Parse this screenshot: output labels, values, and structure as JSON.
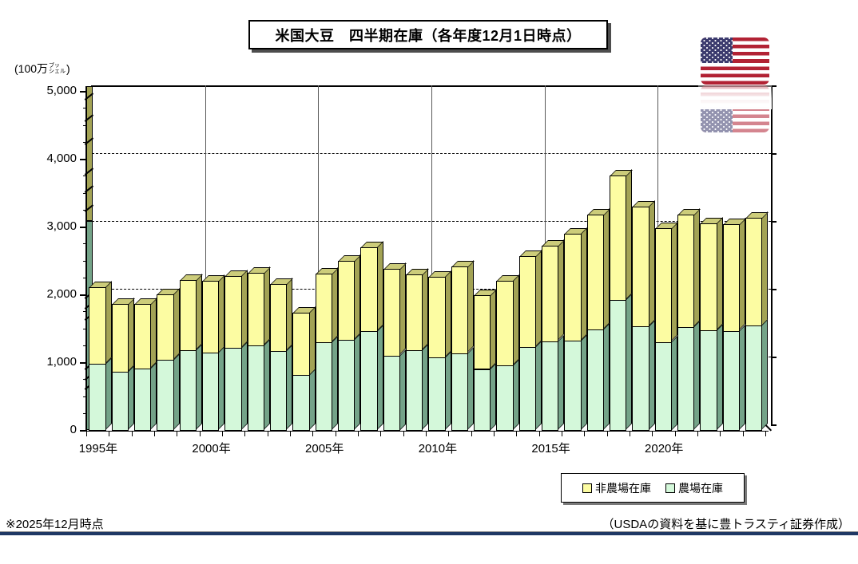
{
  "title": "米国大豆　四半期在庫（各年度12月1日時点）",
  "y_axis": {
    "unit_prefix": "(100万",
    "unit_stack_top": "ブッ",
    "unit_stack_bottom": "シェル",
    "unit_suffix": ")",
    "tick_labels": [
      "0",
      "1,000",
      "2,000",
      "3,000",
      "4,000",
      "5,000"
    ]
  },
  "x_axis": {
    "labels": [
      "1995年",
      "2000年",
      "2005年",
      "2010年",
      "2015年",
      "2020年"
    ],
    "label_years": [
      1995,
      2000,
      2005,
      2010,
      2015,
      2020
    ]
  },
  "legend": {
    "items": [
      {
        "label": "非農場在庫",
        "color": "#FCFCA2"
      },
      {
        "label": "農場在庫",
        "color": "#D4F8DA"
      }
    ]
  },
  "footer": {
    "left_note": "※2025年12月時点",
    "right_note": "（USDAの資料を基に豊トラスティ証券作成）"
  },
  "flag": {
    "name": "us-flag",
    "red": "#B22234",
    "blue": "#3C3B6E"
  },
  "chart_data": {
    "type": "bar",
    "stacked": true,
    "pseudo_3d": true,
    "title": "米国大豆　四半期在庫（各年度12月1日時点）",
    "unit": "100万ブッシェル",
    "ylim": [
      0,
      5000
    ],
    "y_gridlines": [
      1000,
      2000,
      3000,
      4000
    ],
    "grid_style": "dashed-horizontal, solid-vertical-every-5-years",
    "legend_position": "bottom-right-box",
    "categories": [
      1995,
      1996,
      1997,
      1998,
      1999,
      2000,
      2001,
      2002,
      2003,
      2004,
      2005,
      2006,
      2007,
      2008,
      2009,
      2010,
      2011,
      2012,
      2013,
      2014,
      2015,
      2016,
      2017,
      2018,
      2019,
      2020,
      2021,
      2022,
      2023,
      2024
    ],
    "series": [
      {
        "name": "農場在庫",
        "color": "#D4F8DA",
        "side_color": "#74A388",
        "top_color": "#A3CFAF",
        "values": [
          980,
          860,
          910,
          1030,
          1175,
          1140,
          1210,
          1245,
          1165,
          810,
          1295,
          1335,
          1460,
          1100,
          1175,
          1075,
          1135,
          900,
          955,
          1225,
          1310,
          1320,
          1480,
          1920,
          1525,
          1300,
          1520,
          1475,
          1460,
          1540
        ]
      },
      {
        "name": "非農場在庫",
        "color": "#FCFCA2",
        "side_color": "#A3A355",
        "top_color": "#CCCC7A",
        "values": [
          1130,
          1000,
          950,
          970,
          1040,
          1065,
          1060,
          1075,
          990,
          925,
          1015,
          1165,
          1240,
          1275,
          1120,
          1185,
          1275,
          1090,
          1250,
          1345,
          1405,
          1580,
          1695,
          1835,
          1765,
          1675,
          1655,
          1575,
          1570,
          1595
        ]
      }
    ],
    "totals": [
      2110,
      1860,
      1860,
      2000,
      2215,
      2205,
      2270,
      2320,
      2155,
      1735,
      2310,
      2500,
      2700,
      2375,
      2295,
      2260,
      2410,
      1990,
      2205,
      2570,
      2715,
      2900,
      3175,
      3755,
      3290,
      2975,
      3175,
      3050,
      3030,
      3135
    ],
    "clipped_left_bar": {
      "visible": true,
      "farm_extent": 3000,
      "clipped_above": 5000
    }
  }
}
